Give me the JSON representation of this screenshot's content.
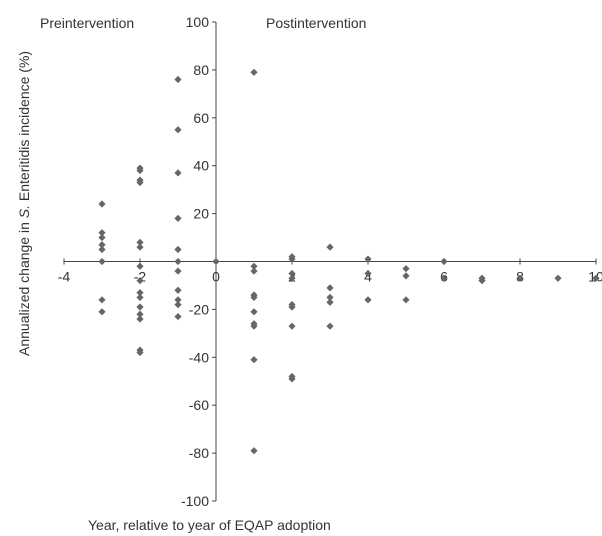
{
  "chart_data": {
    "type": "scatter",
    "title": "",
    "xlabel": "Year, relative to year of EQAP adoption",
    "ylabel_parts": [
      "Annualized change in ",
      "S.",
      " Enteritidis incidence (%)"
    ],
    "xlim": [
      -4,
      10
    ],
    "ylim": [
      -100,
      100
    ],
    "xticks": [
      -4,
      -2,
      0,
      2,
      4,
      6,
      8,
      10
    ],
    "yticks": [
      -100,
      -80,
      -60,
      -40,
      -20,
      0,
      20,
      40,
      60,
      80,
      100
    ],
    "grid": false,
    "annotations": [
      "Preintervention",
      "Postintervention"
    ],
    "marker_color": "#666666",
    "points": [
      {
        "x": -3,
        "y": 24
      },
      {
        "x": -3,
        "y": 12
      },
      {
        "x": -3,
        "y": 10
      },
      {
        "x": -3,
        "y": 7
      },
      {
        "x": -3,
        "y": 5
      },
      {
        "x": -3,
        "y": 0
      },
      {
        "x": -3,
        "y": -16
      },
      {
        "x": -3,
        "y": -21
      },
      {
        "x": -2,
        "y": 39
      },
      {
        "x": -2,
        "y": 38
      },
      {
        "x": -2,
        "y": 34
      },
      {
        "x": -2,
        "y": 33
      },
      {
        "x": -2,
        "y": 8
      },
      {
        "x": -2,
        "y": 6
      },
      {
        "x": -2,
        "y": -2
      },
      {
        "x": -2,
        "y": -8
      },
      {
        "x": -2,
        "y": -13
      },
      {
        "x": -2,
        "y": -15
      },
      {
        "x": -2,
        "y": -19
      },
      {
        "x": -2,
        "y": -22
      },
      {
        "x": -2,
        "y": -24
      },
      {
        "x": -2,
        "y": -37
      },
      {
        "x": -2,
        "y": -38
      },
      {
        "x": -1,
        "y": 76
      },
      {
        "x": -1,
        "y": 55
      },
      {
        "x": -1,
        "y": 37
      },
      {
        "x": -1,
        "y": 18
      },
      {
        "x": -1,
        "y": 5
      },
      {
        "x": -1,
        "y": 0
      },
      {
        "x": -1,
        "y": -4
      },
      {
        "x": -1,
        "y": -12
      },
      {
        "x": -1,
        "y": -16
      },
      {
        "x": -1,
        "y": -18
      },
      {
        "x": -1,
        "y": -23
      },
      {
        "x": 0,
        "y": 0
      },
      {
        "x": 1,
        "y": 79
      },
      {
        "x": 1,
        "y": -2
      },
      {
        "x": 1,
        "y": -4
      },
      {
        "x": 1,
        "y": -14
      },
      {
        "x": 1,
        "y": -15
      },
      {
        "x": 1,
        "y": -21
      },
      {
        "x": 1,
        "y": -26
      },
      {
        "x": 1,
        "y": -27
      },
      {
        "x": 1,
        "y": -41
      },
      {
        "x": 1,
        "y": -79
      },
      {
        "x": 2,
        "y": 2
      },
      {
        "x": 2,
        "y": 1
      },
      {
        "x": 2,
        "y": -5
      },
      {
        "x": 2,
        "y": -7
      },
      {
        "x": 2,
        "y": -18
      },
      {
        "x": 2,
        "y": -19
      },
      {
        "x": 2,
        "y": -27
      },
      {
        "x": 2,
        "y": -48
      },
      {
        "x": 2,
        "y": -49
      },
      {
        "x": 3,
        "y": 6
      },
      {
        "x": 3,
        "y": -11
      },
      {
        "x": 3,
        "y": -15
      },
      {
        "x": 3,
        "y": -17
      },
      {
        "x": 3,
        "y": -27
      },
      {
        "x": 4,
        "y": 1
      },
      {
        "x": 4,
        "y": -5
      },
      {
        "x": 4,
        "y": -16
      },
      {
        "x": 5,
        "y": -3
      },
      {
        "x": 5,
        "y": -6
      },
      {
        "x": 5,
        "y": -16
      },
      {
        "x": 6,
        "y": 0
      },
      {
        "x": 6,
        "y": -7
      },
      {
        "x": 7,
        "y": -7
      },
      {
        "x": 7,
        "y": -8
      },
      {
        "x": 8,
        "y": -7
      },
      {
        "x": 9,
        "y": -7
      },
      {
        "x": 10,
        "y": -7
      }
    ]
  }
}
